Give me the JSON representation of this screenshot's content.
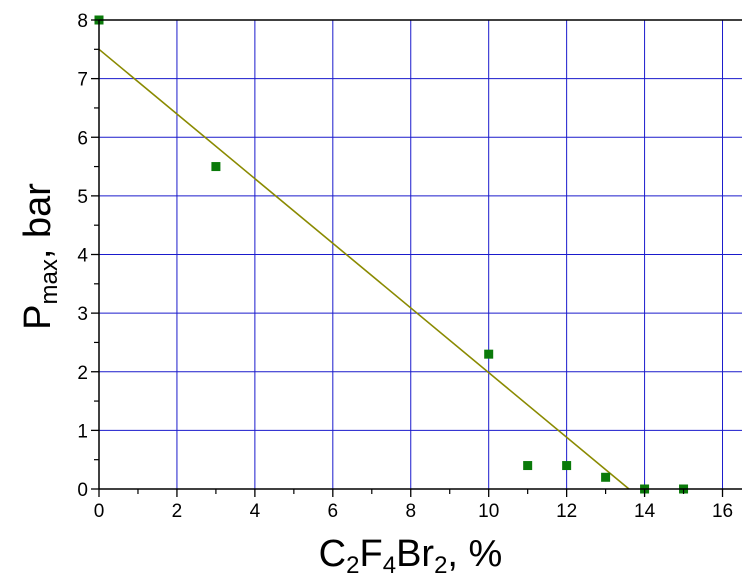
{
  "chart_data": {
    "type": "scatter",
    "xlabel": {
      "parts": [
        {
          "text": "C",
          "sub": false
        },
        {
          "text": "2",
          "sub": true
        },
        {
          "text": "F",
          "sub": false
        },
        {
          "text": "4",
          "sub": true
        },
        {
          "text": "Br",
          "sub": false
        },
        {
          "text": "2",
          "sub": true
        },
        {
          "text": ", %",
          "sub": false
        }
      ]
    },
    "ylabel": {
      "parts": [
        {
          "text": "P",
          "sub": false
        },
        {
          "text": "max",
          "sub": true
        },
        {
          "text": ", bar",
          "sub": false
        }
      ]
    },
    "xlim": [
      0,
      16.5
    ],
    "ylim": [
      0,
      8
    ],
    "x_ticks": [
      "0",
      "2",
      "4",
      "6",
      "8",
      "10",
      "12",
      "14",
      "16"
    ],
    "y_ticks": [
      "0",
      "1",
      "2",
      "3",
      "4",
      "5",
      "6",
      "7",
      "8"
    ],
    "grid": true,
    "series": [
      {
        "type": "scatter",
        "marker": "square",
        "color": "#0a7a0a",
        "points": [
          {
            "x": 0,
            "y": 8.0
          },
          {
            "x": 3,
            "y": 5.5
          },
          {
            "x": 10,
            "y": 2.3
          },
          {
            "x": 11,
            "y": 0.4
          },
          {
            "x": 12,
            "y": 0.4
          },
          {
            "x": 13,
            "y": 0.2
          },
          {
            "x": 14,
            "y": 0.0
          },
          {
            "x": 15,
            "y": 0.0
          }
        ]
      },
      {
        "type": "line",
        "color": "#8a8a00",
        "points": [
          {
            "x": 0,
            "y": 7.5
          },
          {
            "x": 13.6,
            "y": 0.0
          }
        ]
      }
    ],
    "colors": {
      "grid": "#1a1acc",
      "axis": "#000000"
    }
  }
}
